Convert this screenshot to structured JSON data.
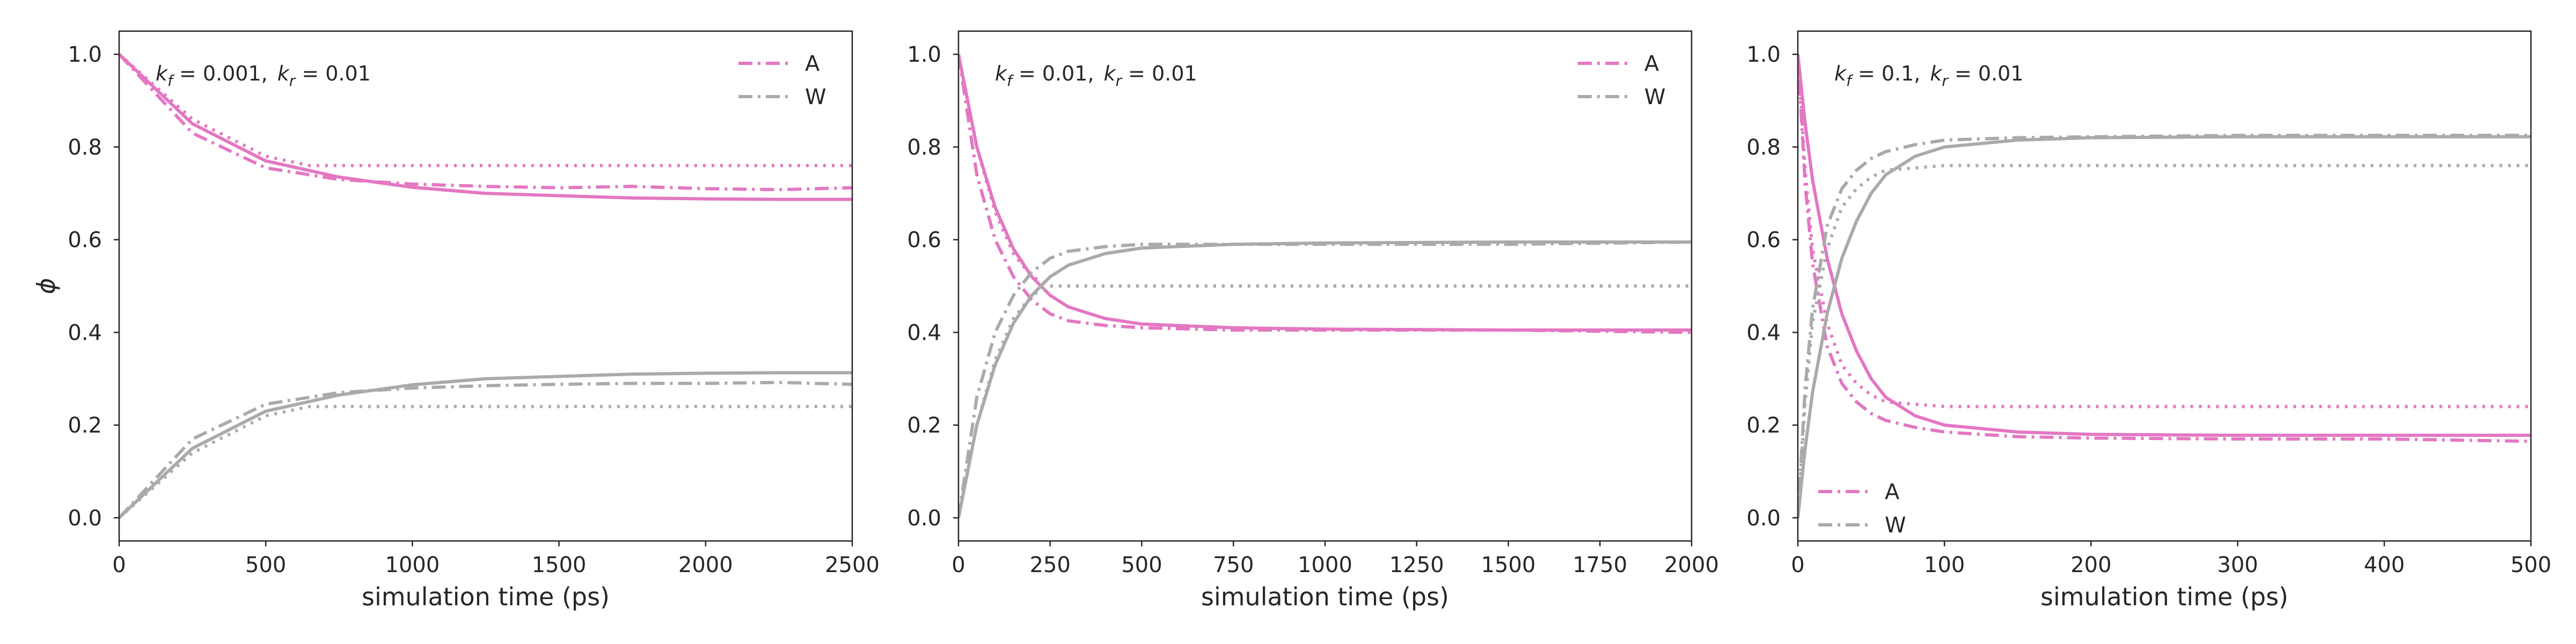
{
  "chart_data": [
    {
      "type": "line",
      "annotation": {
        "k1": "k",
        "k1_sub": "f",
        "k1_val": " = 0.001,",
        "k2": "k",
        "k2_sub": "r",
        "k2_val": " = 0.01"
      },
      "xlabel": "simulation time (ps)",
      "ylabel": "ϕ",
      "xlim": [
        0,
        2500
      ],
      "ylim": [
        -0.05,
        1.05
      ],
      "xticks": [
        0,
        500,
        1000,
        1500,
        2000,
        2500
      ],
      "xtick_labels": [
        "0",
        "500",
        "1000",
        "1500",
        "2000",
        "2500"
      ],
      "yticks": [
        0,
        0.2,
        0.4,
        0.6,
        0.8,
        1.0
      ],
      "ytick_labels": [
        "0.0",
        "0.2",
        "0.4",
        "0.6",
        "0.8",
        "1.0"
      ],
      "legend": {
        "placement": "top-right",
        "entries": [
          "A",
          "W"
        ]
      },
      "colors": {
        "A": "#e377c2",
        "W": "#aaaaaa"
      },
      "grid": false,
      "series": [
        {
          "name": "A",
          "style": "solid",
          "x": [
            0,
            250,
            500,
            750,
            1000,
            1250,
            1500,
            1750,
            2000,
            2250,
            2500
          ],
          "y": [
            1.0,
            0.85,
            0.77,
            0.735,
            0.713,
            0.7,
            0.695,
            0.69,
            0.688,
            0.687,
            0.687
          ]
        },
        {
          "name": "A",
          "style": "dashdot",
          "x": [
            0,
            250,
            500,
            750,
            1000,
            1250,
            1500,
            1750,
            2000,
            2250,
            2500
          ],
          "y": [
            1.0,
            0.83,
            0.755,
            0.73,
            0.72,
            0.715,
            0.712,
            0.715,
            0.71,
            0.708,
            0.712
          ]
        },
        {
          "name": "A",
          "style": "dotted",
          "x": [
            0,
            250,
            500,
            650,
            1000,
            1500,
            2000,
            2500
          ],
          "y": [
            1.0,
            0.86,
            0.78,
            0.76,
            0.76,
            0.76,
            0.76,
            0.76
          ]
        },
        {
          "name": "W",
          "style": "solid",
          "x": [
            0,
            250,
            500,
            750,
            1000,
            1250,
            1500,
            1750,
            2000,
            2250,
            2500
          ],
          "y": [
            0.0,
            0.15,
            0.23,
            0.265,
            0.287,
            0.3,
            0.305,
            0.31,
            0.312,
            0.313,
            0.313
          ]
        },
        {
          "name": "W",
          "style": "dashdot",
          "x": [
            0,
            250,
            500,
            750,
            1000,
            1250,
            1500,
            1750,
            2000,
            2250,
            2500
          ],
          "y": [
            0.0,
            0.17,
            0.245,
            0.27,
            0.28,
            0.285,
            0.288,
            0.29,
            0.29,
            0.292,
            0.288
          ]
        },
        {
          "name": "W",
          "style": "dotted",
          "x": [
            0,
            250,
            500,
            650,
            1000,
            1500,
            2000,
            2500
          ],
          "y": [
            0.0,
            0.14,
            0.22,
            0.24,
            0.24,
            0.24,
            0.24,
            0.24
          ]
        }
      ]
    },
    {
      "type": "line",
      "annotation": {
        "k1": "k",
        "k1_sub": "f",
        "k1_val": " = 0.01,",
        "k2": "k",
        "k2_sub": "r",
        "k2_val": " = 0.01"
      },
      "xlabel": "simulation time (ps)",
      "ylabel": "",
      "xlim": [
        0,
        2000
      ],
      "ylim": [
        -0.05,
        1.05
      ],
      "xticks": [
        0,
        250,
        500,
        750,
        1000,
        1250,
        1500,
        1750,
        2000
      ],
      "xtick_labels": [
        "0",
        "250",
        "500",
        "750",
        "1000",
        "1250",
        "1500",
        "1750",
        "2000"
      ],
      "yticks": [
        0,
        0.2,
        0.4,
        0.6,
        0.8,
        1.0
      ],
      "ytick_labels": [
        "0.0",
        "0.2",
        "0.4",
        "0.6",
        "0.8",
        "1.0"
      ],
      "legend": {
        "placement": "top-right",
        "entries": [
          "A",
          "W"
        ]
      },
      "colors": {
        "A": "#e377c2",
        "W": "#aaaaaa"
      },
      "grid": false,
      "series": [
        {
          "name": "A",
          "style": "solid",
          "x": [
            0,
            50,
            100,
            150,
            200,
            250,
            300,
            400,
            500,
            750,
            1000,
            1500,
            2000
          ],
          "y": [
            1.0,
            0.8,
            0.67,
            0.58,
            0.52,
            0.48,
            0.455,
            0.43,
            0.418,
            0.41,
            0.407,
            0.405,
            0.405
          ]
        },
        {
          "name": "A",
          "style": "dashdot",
          "x": [
            0,
            50,
            100,
            150,
            200,
            250,
            300,
            400,
            500,
            750,
            1000,
            1500,
            2000
          ],
          "y": [
            1.0,
            0.74,
            0.6,
            0.52,
            0.47,
            0.44,
            0.425,
            0.415,
            0.41,
            0.405,
            0.405,
            0.405,
            0.4
          ]
        },
        {
          "name": "A",
          "style": "dotted",
          "x": [
            0,
            50,
            100,
            150,
            200,
            250,
            500,
            1000,
            1500,
            2000
          ],
          "y": [
            1.0,
            0.8,
            0.66,
            0.57,
            0.52,
            0.5,
            0.5,
            0.5,
            0.5,
            0.5
          ]
        },
        {
          "name": "W",
          "style": "solid",
          "x": [
            0,
            50,
            100,
            150,
            200,
            250,
            300,
            400,
            500,
            750,
            1000,
            1500,
            2000
          ],
          "y": [
            0.0,
            0.2,
            0.33,
            0.42,
            0.48,
            0.52,
            0.545,
            0.57,
            0.582,
            0.59,
            0.593,
            0.595,
            0.595
          ]
        },
        {
          "name": "W",
          "style": "dashdot",
          "x": [
            0,
            50,
            100,
            150,
            200,
            250,
            300,
            400,
            500,
            750,
            1000,
            1500,
            2000
          ],
          "y": [
            0.0,
            0.26,
            0.4,
            0.48,
            0.53,
            0.56,
            0.575,
            0.585,
            0.59,
            0.59,
            0.59,
            0.59,
            0.595
          ]
        },
        {
          "name": "W",
          "style": "dotted",
          "x": [
            0,
            50,
            100,
            150,
            200,
            250,
            500,
            1000,
            1500,
            2000
          ],
          "y": [
            0.0,
            0.2,
            0.34,
            0.43,
            0.48,
            0.5,
            0.5,
            0.5,
            0.5,
            0.5
          ]
        }
      ]
    },
    {
      "type": "line",
      "annotation": {
        "k1": "k",
        "k1_sub": "f",
        "k1_val": " = 0.1,",
        "k2": "k",
        "k2_sub": "r",
        "k2_val": " = 0.01"
      },
      "xlabel": "simulation time (ps)",
      "ylabel": "",
      "xlim": [
        0,
        500
      ],
      "ylim": [
        -0.05,
        1.05
      ],
      "xticks": [
        0,
        100,
        200,
        300,
        400,
        500
      ],
      "xtick_labels": [
        "0",
        "100",
        "200",
        "300",
        "400",
        "500"
      ],
      "yticks": [
        0,
        0.2,
        0.4,
        0.6,
        0.8,
        1.0
      ],
      "ytick_labels": [
        "0.0",
        "0.2",
        "0.4",
        "0.6",
        "0.8",
        "1.0"
      ],
      "legend": {
        "placement": "lower-left",
        "entries": [
          "A",
          "W"
        ]
      },
      "colors": {
        "A": "#e377c2",
        "W": "#aaaaaa"
      },
      "grid": false,
      "series": [
        {
          "name": "A",
          "style": "solid",
          "x": [
            0,
            5,
            10,
            20,
            30,
            40,
            50,
            60,
            80,
            100,
            150,
            200,
            300,
            400,
            500
          ],
          "y": [
            1.0,
            0.85,
            0.73,
            0.56,
            0.44,
            0.36,
            0.3,
            0.26,
            0.22,
            0.2,
            0.185,
            0.18,
            0.178,
            0.178,
            0.178
          ]
        },
        {
          "name": "A",
          "style": "dashdot",
          "x": [
            0,
            5,
            10,
            20,
            30,
            40,
            50,
            60,
            80,
            100,
            150,
            200,
            300,
            400,
            500
          ],
          "y": [
            1.0,
            0.72,
            0.55,
            0.37,
            0.29,
            0.25,
            0.225,
            0.21,
            0.195,
            0.185,
            0.175,
            0.172,
            0.17,
            0.17,
            0.165
          ]
        },
        {
          "name": "A",
          "style": "dotted",
          "x": [
            0,
            5,
            10,
            20,
            30,
            40,
            50,
            60,
            80,
            100,
            200,
            300,
            400,
            500
          ],
          "y": [
            1.0,
            0.75,
            0.58,
            0.42,
            0.33,
            0.29,
            0.265,
            0.25,
            0.245,
            0.24,
            0.24,
            0.24,
            0.24,
            0.24
          ]
        },
        {
          "name": "W",
          "style": "solid",
          "x": [
            0,
            5,
            10,
            20,
            30,
            40,
            50,
            60,
            80,
            100,
            150,
            200,
            300,
            400,
            500
          ],
          "y": [
            0.0,
            0.15,
            0.27,
            0.44,
            0.56,
            0.64,
            0.7,
            0.74,
            0.78,
            0.8,
            0.815,
            0.82,
            0.822,
            0.822,
            0.822
          ]
        },
        {
          "name": "W",
          "style": "dashdot",
          "x": [
            0,
            5,
            10,
            20,
            30,
            40,
            50,
            60,
            80,
            100,
            150,
            200,
            300,
            400,
            500
          ],
          "y": [
            0.0,
            0.28,
            0.45,
            0.63,
            0.71,
            0.75,
            0.775,
            0.79,
            0.805,
            0.815,
            0.82,
            0.822,
            0.825,
            0.825,
            0.825
          ]
        },
        {
          "name": "W",
          "style": "dotted",
          "x": [
            0,
            5,
            10,
            20,
            30,
            40,
            50,
            60,
            80,
            100,
            200,
            300,
            400,
            500
          ],
          "y": [
            0.0,
            0.25,
            0.42,
            0.58,
            0.67,
            0.71,
            0.735,
            0.75,
            0.755,
            0.76,
            0.76,
            0.76,
            0.76,
            0.76
          ]
        }
      ]
    }
  ]
}
